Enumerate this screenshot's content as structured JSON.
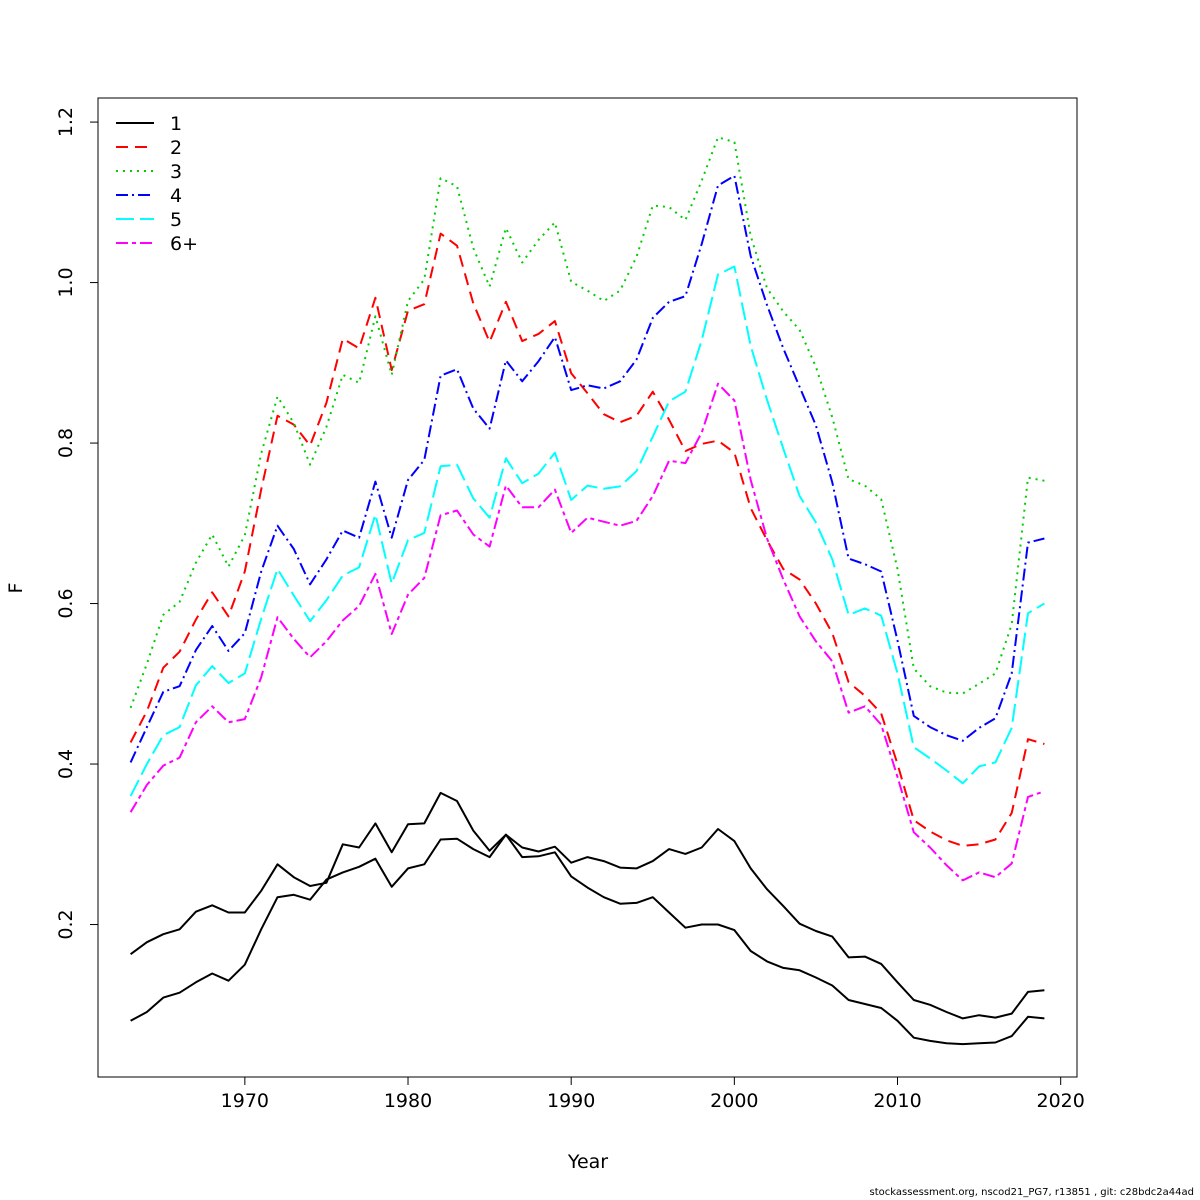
{
  "chart_data": {
    "type": "line",
    "title": "",
    "xlabel": "Year",
    "ylabel": "F",
    "xlim": [
      1961,
      2021
    ],
    "ylim": [
      0.01,
      1.23
    ],
    "xticks": [
      1970,
      1980,
      1990,
      2000,
      2010,
      2020
    ],
    "yticks": [
      0.2,
      0.4,
      0.6,
      0.8,
      1.0,
      1.2
    ],
    "ytick_labels": [
      "0.2",
      "0.4",
      "0.6",
      "0.8",
      "1.0",
      "1.2"
    ],
    "grid": false,
    "legend_position": "top-left",
    "x": [
      1963,
      1964,
      1965,
      1966,
      1967,
      1968,
      1969,
      1970,
      1971,
      1972,
      1973,
      1974,
      1975,
      1976,
      1977,
      1978,
      1979,
      1980,
      1981,
      1982,
      1983,
      1984,
      1985,
      1986,
      1987,
      1988,
      1989,
      1990,
      1991,
      1992,
      1993,
      1994,
      1995,
      1996,
      1997,
      1998,
      1999,
      2000,
      2001,
      2002,
      2003,
      2004,
      2005,
      2006,
      2007,
      2008,
      2009,
      2010,
      2011,
      2012,
      2013,
      2014,
      2015,
      2016,
      2017,
      2018,
      2019
    ],
    "series": [
      {
        "name": "1",
        "color": "#000000",
        "dash": "solid",
        "values": [
          0.08,
          0.091,
          0.109,
          0.115,
          0.128,
          0.139,
          0.13,
          0.15,
          0.194,
          0.234,
          0.237,
          0.231,
          0.256,
          0.265,
          0.272,
          0.282,
          0.247,
          0.27,
          0.275,
          0.306,
          0.307,
          0.294,
          0.284,
          0.312,
          0.284,
          0.285,
          0.29,
          0.26,
          0.246,
          0.234,
          0.226,
          0.227,
          0.234,
          0.215,
          0.196,
          0.2,
          0.2,
          0.193,
          0.167,
          0.154,
          0.146,
          0.143,
          0.134,
          0.124,
          0.106,
          0.101,
          0.096,
          0.08,
          0.059,
          0.055,
          0.052,
          0.051,
          0.052,
          0.053,
          0.061,
          0.085,
          0.083
        ]
      },
      {
        "name": "",
        "color": "#000000",
        "dash": "solid",
        "values": [
          0.163,
          0.178,
          0.188,
          0.194,
          0.216,
          0.224,
          0.215,
          0.215,
          0.242,
          0.275,
          0.259,
          0.248,
          0.252,
          0.3,
          0.296,
          0.326,
          0.29,
          0.325,
          0.326,
          0.364,
          0.354,
          0.317,
          0.292,
          0.312,
          0.296,
          0.291,
          0.297,
          0.277,
          0.284,
          0.279,
          0.271,
          0.27,
          0.279,
          0.294,
          0.288,
          0.296,
          0.319,
          0.304,
          0.27,
          0.244,
          0.223,
          0.201,
          0.192,
          0.185,
          0.159,
          0.16,
          0.151,
          0.128,
          0.106,
          0.1,
          0.091,
          0.083,
          0.087,
          0.084,
          0.089,
          0.116,
          0.118
        ]
      },
      {
        "name": "2",
        "color": "#ff0000",
        "dash": "12,7",
        "values": [
          0.427,
          0.466,
          0.52,
          0.54,
          0.58,
          0.614,
          0.584,
          0.64,
          0.742,
          0.834,
          0.823,
          0.797,
          0.85,
          0.93,
          0.918,
          0.981,
          0.891,
          0.965,
          0.973,
          1.061,
          1.046,
          0.974,
          0.926,
          0.976,
          0.927,
          0.936,
          0.952,
          0.887,
          0.862,
          0.836,
          0.826,
          0.834,
          0.864,
          0.829,
          0.79,
          0.799,
          0.803,
          0.788,
          0.719,
          0.679,
          0.643,
          0.63,
          0.6,
          0.563,
          0.502,
          0.485,
          0.463,
          0.4,
          0.33,
          0.316,
          0.305,
          0.298,
          0.3,
          0.306,
          0.339,
          0.431,
          0.425
        ]
      },
      {
        "name": "3",
        "color": "#00cd00",
        "dash": "2,5",
        "values": [
          0.47,
          0.525,
          0.586,
          0.602,
          0.651,
          0.686,
          0.646,
          0.685,
          0.787,
          0.858,
          0.825,
          0.773,
          0.82,
          0.885,
          0.875,
          0.958,
          0.885,
          0.977,
          1.004,
          1.13,
          1.12,
          1.043,
          0.995,
          1.068,
          1.025,
          1.053,
          1.075,
          1.001,
          0.99,
          0.977,
          0.99,
          1.032,
          1.096,
          1.094,
          1.078,
          1.127,
          1.181,
          1.175,
          1.058,
          0.993,
          0.964,
          0.941,
          0.895,
          0.832,
          0.755,
          0.747,
          0.73,
          0.643,
          0.519,
          0.497,
          0.489,
          0.488,
          0.5,
          0.513,
          0.574,
          0.757,
          0.753
        ]
      },
      {
        "name": "4",
        "color": "#0000ff",
        "dash": "12,4,2,4",
        "values": [
          0.402,
          0.446,
          0.49,
          0.497,
          0.542,
          0.572,
          0.541,
          0.563,
          0.64,
          0.697,
          0.668,
          0.624,
          0.655,
          0.691,
          0.682,
          0.752,
          0.682,
          0.754,
          0.779,
          0.884,
          0.892,
          0.843,
          0.818,
          0.903,
          0.877,
          0.902,
          0.932,
          0.866,
          0.872,
          0.868,
          0.877,
          0.904,
          0.956,
          0.976,
          0.983,
          1.048,
          1.121,
          1.133,
          1.033,
          0.972,
          0.918,
          0.87,
          0.822,
          0.751,
          0.656,
          0.649,
          0.64,
          0.554,
          0.46,
          0.446,
          0.436,
          0.429,
          0.445,
          0.457,
          0.513,
          0.676,
          0.681
        ]
      },
      {
        "name": "5",
        "color": "#00ffff",
        "dash": "18,6",
        "values": [
          0.36,
          0.4,
          0.436,
          0.446,
          0.498,
          0.522,
          0.501,
          0.513,
          0.581,
          0.643,
          0.61,
          0.578,
          0.604,
          0.635,
          0.645,
          0.711,
          0.625,
          0.679,
          0.688,
          0.771,
          0.773,
          0.731,
          0.707,
          0.781,
          0.75,
          0.762,
          0.788,
          0.729,
          0.747,
          0.743,
          0.746,
          0.765,
          0.808,
          0.852,
          0.864,
          0.928,
          1.01,
          1.02,
          0.921,
          0.854,
          0.793,
          0.734,
          0.701,
          0.655,
          0.586,
          0.594,
          0.585,
          0.513,
          0.421,
          0.407,
          0.392,
          0.376,
          0.397,
          0.402,
          0.445,
          0.588,
          0.6
        ]
      },
      {
        "name": "6+",
        "color": "#ff00ff",
        "dash": "12,4,4,4",
        "values": [
          0.34,
          0.374,
          0.398,
          0.408,
          0.452,
          0.472,
          0.452,
          0.456,
          0.508,
          0.583,
          0.556,
          0.533,
          0.553,
          0.579,
          0.597,
          0.637,
          0.562,
          0.611,
          0.632,
          0.71,
          0.716,
          0.686,
          0.671,
          0.747,
          0.72,
          0.72,
          0.742,
          0.688,
          0.707,
          0.702,
          0.697,
          0.703,
          0.734,
          0.778,
          0.775,
          0.813,
          0.874,
          0.853,
          0.754,
          0.681,
          0.63,
          0.584,
          0.553,
          0.528,
          0.464,
          0.472,
          0.449,
          0.384,
          0.315,
          0.296,
          0.274,
          0.255,
          0.265,
          0.259,
          0.276,
          0.359,
          0.366
        ]
      }
    ]
  },
  "footer": "stockassessment.org, nscod21_PG7, r13851 , git: c28bdc2a44ad"
}
